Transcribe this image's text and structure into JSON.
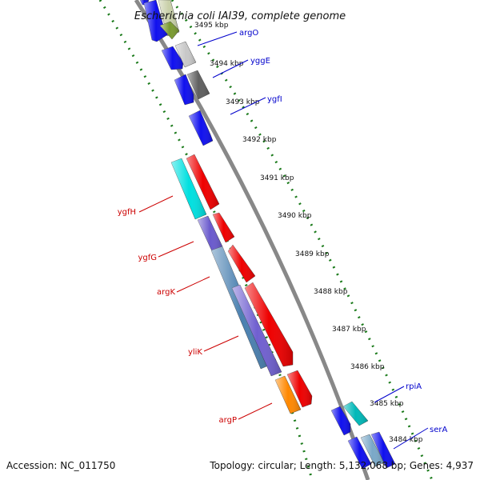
{
  "title": "Escherichia coli IAI39, complete genome",
  "accession_text": "Accession: NC_011750",
  "summary_text": "Topology: circular; Length: 5,132,068 bp; Genes: 4,937",
  "colors": {
    "backbone": "#888888",
    "tick": "#1a7a1a",
    "forward_label": "#0000cc",
    "reverse_label": "#cc0000"
  },
  "ticks": [
    {
      "label": "3495 kbp"
    },
    {
      "label": "3494 kbp"
    },
    {
      "label": "3493 kbp"
    },
    {
      "label": "3492 kbp"
    },
    {
      "label": "3491 kbp"
    },
    {
      "label": "3490 kbp"
    },
    {
      "label": "3489 kbp"
    },
    {
      "label": "3488 kbp"
    },
    {
      "label": "3487 kbp"
    },
    {
      "label": "3486 kbp"
    },
    {
      "label": "3485 kbp"
    },
    {
      "label": "3484 kbp"
    }
  ],
  "gene_labels": [
    {
      "name": "argO",
      "strand": "forward"
    },
    {
      "name": "yggE",
      "strand": "forward"
    },
    {
      "name": "ygfI",
      "strand": "forward"
    },
    {
      "name": "ygfH",
      "strand": "reverse"
    },
    {
      "name": "ygfG",
      "strand": "reverse"
    },
    {
      "name": "argK",
      "strand": "reverse"
    },
    {
      "name": "yliK",
      "strand": "reverse"
    },
    {
      "name": "argP",
      "strand": "reverse"
    },
    {
      "name": "rpiA",
      "strand": "forward"
    },
    {
      "name": "serA",
      "strand": "forward"
    }
  ]
}
